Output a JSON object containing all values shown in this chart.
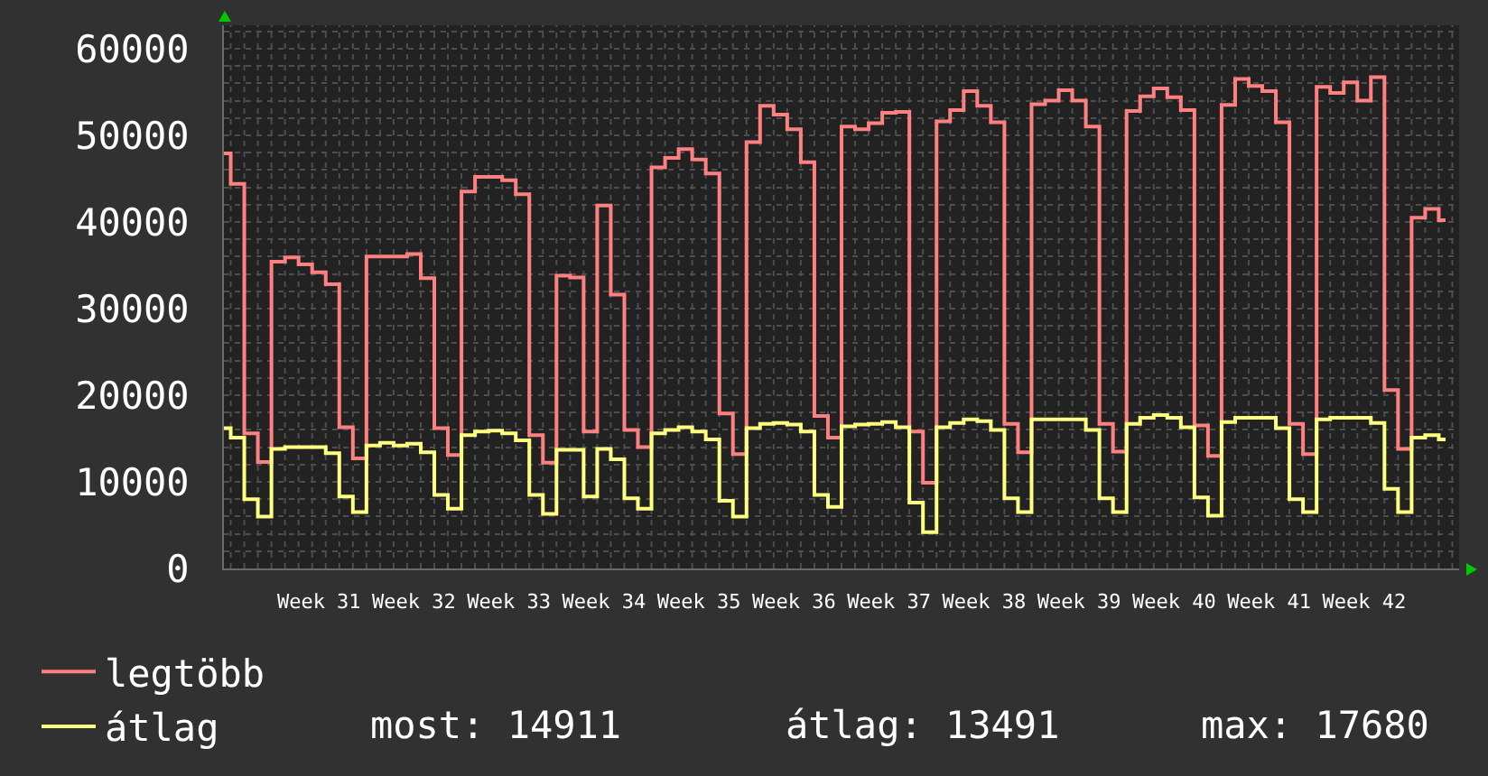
{
  "chart_data": {
    "type": "step",
    "categories": [
      null,
      null,
      null,
      null,
      null,
      null,
      null,
      "Week 31",
      null,
      null,
      null,
      null,
      null,
      null,
      "Week 32",
      null,
      null,
      null,
      null,
      null,
      null,
      "Week 33",
      null,
      null,
      null,
      null,
      null,
      null,
      "Week 34",
      null,
      null,
      null,
      null,
      null,
      null,
      "Week 35",
      null,
      null,
      null,
      null,
      null,
      null,
      "Week 36",
      null,
      null,
      null,
      null,
      null,
      null,
      "Week 37",
      null,
      null,
      null,
      null,
      null,
      null,
      "Week 38",
      null,
      null,
      null,
      null,
      null,
      null,
      "Week 39",
      null,
      null,
      null,
      null,
      null,
      null,
      "Week 40",
      null,
      null,
      null,
      null,
      null,
      null,
      "Week 41",
      null,
      null,
      null,
      null,
      null,
      null,
      "Week 42",
      null,
      null,
      null,
      null,
      null,
      null,
      null
    ],
    "series": [
      {
        "name": "legtöbb",
        "color": "#ff8080",
        "values": [
          47900,
          44400,
          15600,
          12300,
          35400,
          35900,
          35100,
          34200,
          32800,
          16300,
          12700,
          36000,
          36000,
          36000,
          36300,
          33500,
          16200,
          13100,
          43500,
          45200,
          45200,
          44800,
          43200,
          15400,
          12200,
          33800,
          33600,
          15800,
          41900,
          31600,
          16000,
          14000,
          46300,
          47400,
          48400,
          47200,
          45600,
          17900,
          13200,
          49200,
          53400,
          52400,
          50700,
          46900,
          17600,
          15100,
          51000,
          50700,
          51400,
          52600,
          52700,
          15800,
          9900,
          51600,
          52900,
          55100,
          53400,
          51500,
          16700,
          13400,
          53600,
          54000,
          55200,
          54000,
          51000,
          16700,
          13500,
          52800,
          54500,
          55400,
          54400,
          52900,
          16500,
          13000,
          53500,
          56500,
          55700,
          55100,
          51500,
          16700,
          13200,
          55600,
          54900,
          56100,
          54000,
          56700,
          20600,
          13800,
          40500,
          41500,
          40200,
          null
        ]
      },
      {
        "name": "átlag",
        "color": "#ffff80",
        "values": [
          16200,
          15100,
          8000,
          6000,
          13800,
          14000,
          14000,
          14000,
          13300,
          8300,
          6500,
          14200,
          14500,
          14200,
          14400,
          13400,
          8500,
          6900,
          15400,
          15800,
          15900,
          15600,
          14800,
          8500,
          6300,
          13700,
          13700,
          8300,
          13800,
          12600,
          8100,
          6900,
          15600,
          16000,
          16300,
          15800,
          14900,
          7800,
          6000,
          16200,
          16700,
          16800,
          16600,
          15800,
          8500,
          7100,
          16400,
          16600,
          16700,
          16900,
          16300,
          7600,
          4200,
          16300,
          16800,
          17200,
          17000,
          16000,
          8100,
          6500,
          17200,
          17200,
          17200,
          17200,
          16000,
          8100,
          6500,
          16700,
          17400,
          17700,
          17400,
          16300,
          8200,
          6100,
          16900,
          17400,
          17400,
          17400,
          16200,
          8000,
          6500,
          17200,
          17400,
          17400,
          17400,
          16800,
          9200,
          6500,
          15100,
          15400,
          14900,
          null
        ]
      }
    ],
    "ylim": [
      0,
      62700
    ],
    "yticks": [
      0,
      {
        "value": 2000,
        "label": null
      },
      {
        "value": 4000,
        "label": null
      },
      {
        "value": 6000,
        "label": null
      },
      {
        "value": 8000,
        "label": null
      },
      10000,
      {
        "value": 12000,
        "label": null
      },
      {
        "value": 14000,
        "label": null
      },
      {
        "value": 16000,
        "label": null
      },
      {
        "value": 18000,
        "label": null
      },
      20000,
      {
        "value": 22000,
        "label": null
      },
      {
        "value": 24000,
        "label": null
      },
      {
        "value": 26000,
        "label": null
      },
      {
        "value": 28000,
        "label": null
      },
      30000,
      {
        "value": 32000,
        "label": null
      },
      {
        "value": 34000,
        "label": null
      },
      {
        "value": 36000,
        "label": null
      },
      {
        "value": 38000,
        "label": null
      },
      40000,
      {
        "value": 42000,
        "label": null
      },
      {
        "value": 44000,
        "label": null
      },
      {
        "value": 46000,
        "label": null
      },
      {
        "value": 48000,
        "label": null
      },
      50000,
      {
        "value": 52000,
        "label": null
      },
      {
        "value": 54000,
        "label": null
      },
      {
        "value": 56000,
        "label": null
      },
      {
        "value": 58000,
        "label": null
      },
      60000,
      {
        "value": 62000,
        "label": null
      }
    ],
    "grid": true,
    "legend": "bottom left",
    "annotations": [
      "most: 14911",
      "átlag: 13491",
      "max: 17680"
    ]
  }
}
